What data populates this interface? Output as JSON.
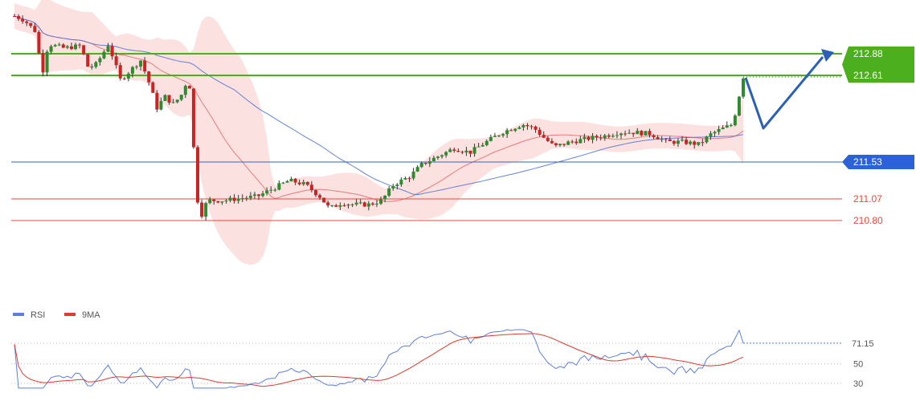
{
  "chart_data": [
    {
      "type": "candlestick",
      "title": "",
      "ylim": [
        209.8,
        213.55
      ],
      "bollinger_band": true,
      "moving_averages": [
        "red",
        "blue"
      ],
      "horizontal_levels": [
        {
          "value": 212.88,
          "label": "212.88",
          "color": "#4caf1e",
          "style": "resistance",
          "tag": "box-green"
        },
        {
          "value": 212.61,
          "label": "212.61",
          "color": "#4caf1e",
          "style": "resistance",
          "tag": "box-green"
        },
        {
          "value": 211.53,
          "label": "211.53",
          "color": "#2b62d9",
          "style": "pivot",
          "tag": "box-blue"
        },
        {
          "value": 211.07,
          "label": "211.07",
          "color": "#e8493a",
          "style": "support",
          "tag": "text-red"
        },
        {
          "value": 210.8,
          "label": "210.80",
          "color": "#e8493a",
          "style": "support",
          "tag": "text-red"
        }
      ],
      "last_price": 212.59,
      "forecast_arrow": {
        "direction": "down-then-up",
        "target": 212.88
      },
      "candles_count": 180
    },
    {
      "type": "line",
      "legend": [
        "RSI",
        "9MA"
      ],
      "series": [
        {
          "name": "RSI",
          "color": "#5b7fdb"
        },
        {
          "name": "9MA",
          "color": "#e03b2e"
        }
      ],
      "ylim": [
        20,
        90
      ],
      "reference_lines": [
        {
          "value": 50,
          "label": "50"
        },
        {
          "value": 30,
          "label": "30"
        }
      ],
      "last_value": 71.15,
      "last_label": "71.15"
    }
  ],
  "colors": {
    "bull": "#2e8b2e",
    "bear": "#cc2222",
    "band": "#f9c9c9",
    "ma_fast": "#e05050",
    "ma_slow": "#4a6fd0",
    "arrow": "#2b5fb8"
  }
}
